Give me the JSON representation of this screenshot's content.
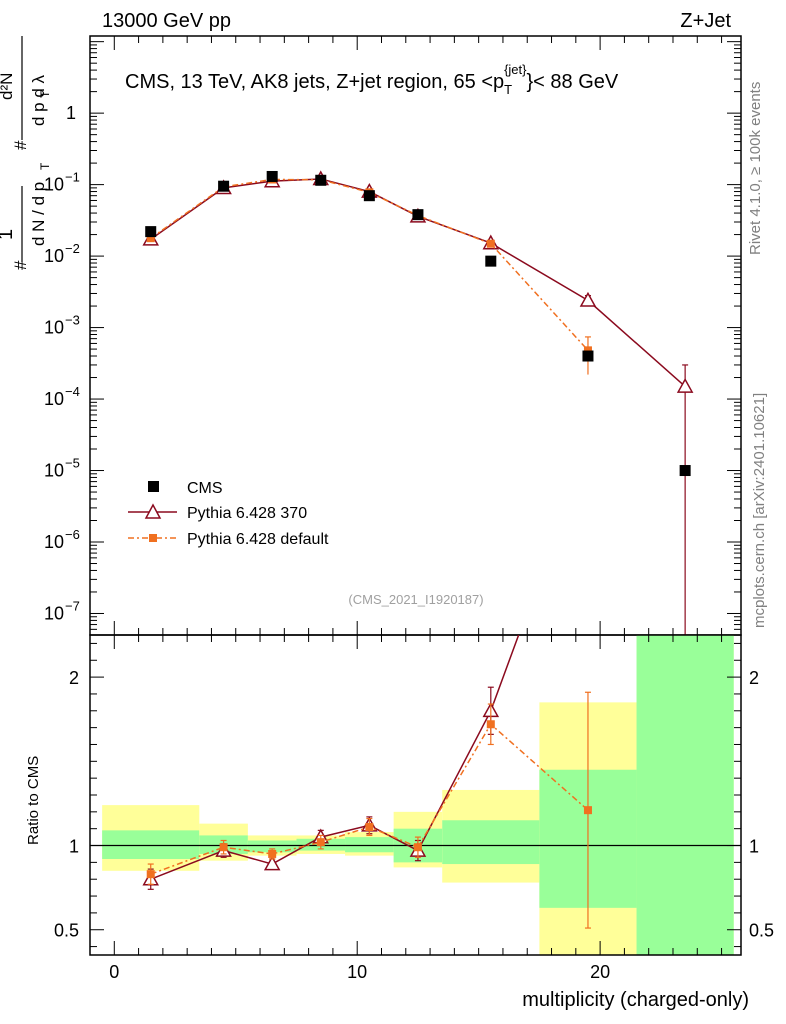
{
  "header": {
    "left": "13000 GeV pp",
    "right": "Z+Jet"
  },
  "side_labels": {
    "rivet": "Rivet 4.1.0, ≥ 100k events",
    "mcplots": "mcplots.cern.ch [arXiv:2401.10621]"
  },
  "chart_data": {
    "type": "scatter",
    "title": "CMS, 13 TeV, AK8 jets, Z+jet region, 65 <p_T^{jet}< 88 GeV",
    "title_parts": {
      "main": "CMS, 13 TeV, AK8 jets, Z+jet region, 65 <p",
      "sup": "{jet}",
      "sub": "T",
      "end": "}< 88 GeV"
    },
    "analysis_tag": "(CMS_2021_I1920187)",
    "xlabel": "multiplicity (charged-only)",
    "ylabel_ratio": "Ratio to CMS",
    "xlim": [
      -1,
      25.8
    ],
    "ylim_main": [
      5e-08,
      12
    ],
    "ylim_ratio": [
      0.35,
      2.25
    ],
    "x_ticks": [
      0,
      10,
      20
    ],
    "y_ticks_main": [
      {
        "value": 1,
        "label": "1"
      },
      {
        "value": 0.1,
        "label": "10",
        "exp": "−1"
      },
      {
        "value": 0.01,
        "label": "10",
        "exp": "−2"
      },
      {
        "value": 0.001,
        "label": "10",
        "exp": "−3"
      },
      {
        "value": 0.0001,
        "label": "10",
        "exp": "−4"
      },
      {
        "value": 1e-05,
        "label": "10",
        "exp": "−5"
      },
      {
        "value": 1e-06,
        "label": "10",
        "exp": "−6"
      },
      {
        "value": 1e-07,
        "label": "10",
        "exp": "−7"
      }
    ],
    "y_ticks_ratio": [
      {
        "value": 0.5,
        "label": "0.5"
      },
      {
        "value": 1,
        "label": "1"
      },
      {
        "value": 2,
        "label": "2"
      }
    ],
    "bin_edges": [
      -0.5,
      3.5,
      5.5,
      7.5,
      9.5,
      11.5,
      13.5,
      17.5,
      21.5,
      25.5
    ],
    "series": [
      {
        "name": "CMS",
        "color": "#000000",
        "marker": "square",
        "x": [
          1.5,
          4.5,
          6.5,
          8.5,
          10.5,
          12.5,
          15.5,
          19.5,
          23.5
        ],
        "y": [
          0.022,
          0.095,
          0.13,
          0.115,
          0.07,
          0.038,
          0.0085,
          0.0004,
          1e-05
        ]
      },
      {
        "name": "Pythia 6.428 370",
        "color": "#8b0a1e",
        "marker": "triangle",
        "x": [
          1.5,
          4.5,
          6.5,
          8.5,
          10.5,
          12.5,
          15.5,
          19.5,
          23.5
        ],
        "y": [
          0.0172,
          0.09,
          0.112,
          0.12,
          0.08,
          0.036,
          0.0152,
          0.0024,
          0.00015
        ],
        "y_err": [
          0.0009,
          0.003,
          0.004,
          0.004,
          0.003,
          0.0015,
          0.0008,
          0.0004,
          0.00015
        ],
        "ratio": [
          0.8,
          0.97,
          0.89,
          1.05,
          1.12,
          0.97,
          1.8,
          null,
          null
        ],
        "ratio_err": [
          0.06,
          0.04,
          0.03,
          0.04,
          0.05,
          0.06,
          0.14,
          null,
          null
        ]
      },
      {
        "name": "Pythia 6.428 default",
        "color": "#f07020",
        "marker": "square",
        "x": [
          1.5,
          4.5,
          6.5,
          8.5,
          10.5,
          12.5,
          15.5,
          19.5
        ],
        "y": [
          0.0178,
          0.093,
          0.118,
          0.117,
          0.078,
          0.037,
          0.0149,
          0.00048
        ],
        "y_err": [
          0.0009,
          0.003,
          0.004,
          0.004,
          0.003,
          0.0015,
          0.0008,
          0.00026
        ],
        "ratio": [
          0.83,
          0.99,
          0.95,
          1.02,
          1.11,
          0.99,
          1.72,
          1.21
        ],
        "ratio_err": [
          0.06,
          0.04,
          0.03,
          0.04,
          0.05,
          0.06,
          0.12,
          0.7
        ]
      }
    ],
    "uncertainty_bands": {
      "inner_color": "#99ff99",
      "outer_color": "#ffff99",
      "inner": [
        [
          0.92,
          1.09
        ],
        [
          0.95,
          1.06
        ],
        [
          0.96,
          1.03
        ],
        [
          0.97,
          1.04
        ],
        [
          0.96,
          1.05
        ],
        [
          0.9,
          1.1
        ],
        [
          0.89,
          1.15
        ],
        [
          0.63,
          1.45
        ],
        [
          0.35,
          2.25
        ]
      ],
      "outer": [
        [
          0.85,
          1.24
        ],
        [
          0.91,
          1.13
        ],
        [
          0.94,
          1.06
        ],
        [
          0.95,
          1.06
        ],
        [
          0.94,
          1.08
        ],
        [
          0.87,
          1.2
        ],
        [
          0.78,
          1.33
        ],
        [
          0.35,
          1.85
        ],
        [
          0.35,
          2.25
        ]
      ]
    }
  }
}
